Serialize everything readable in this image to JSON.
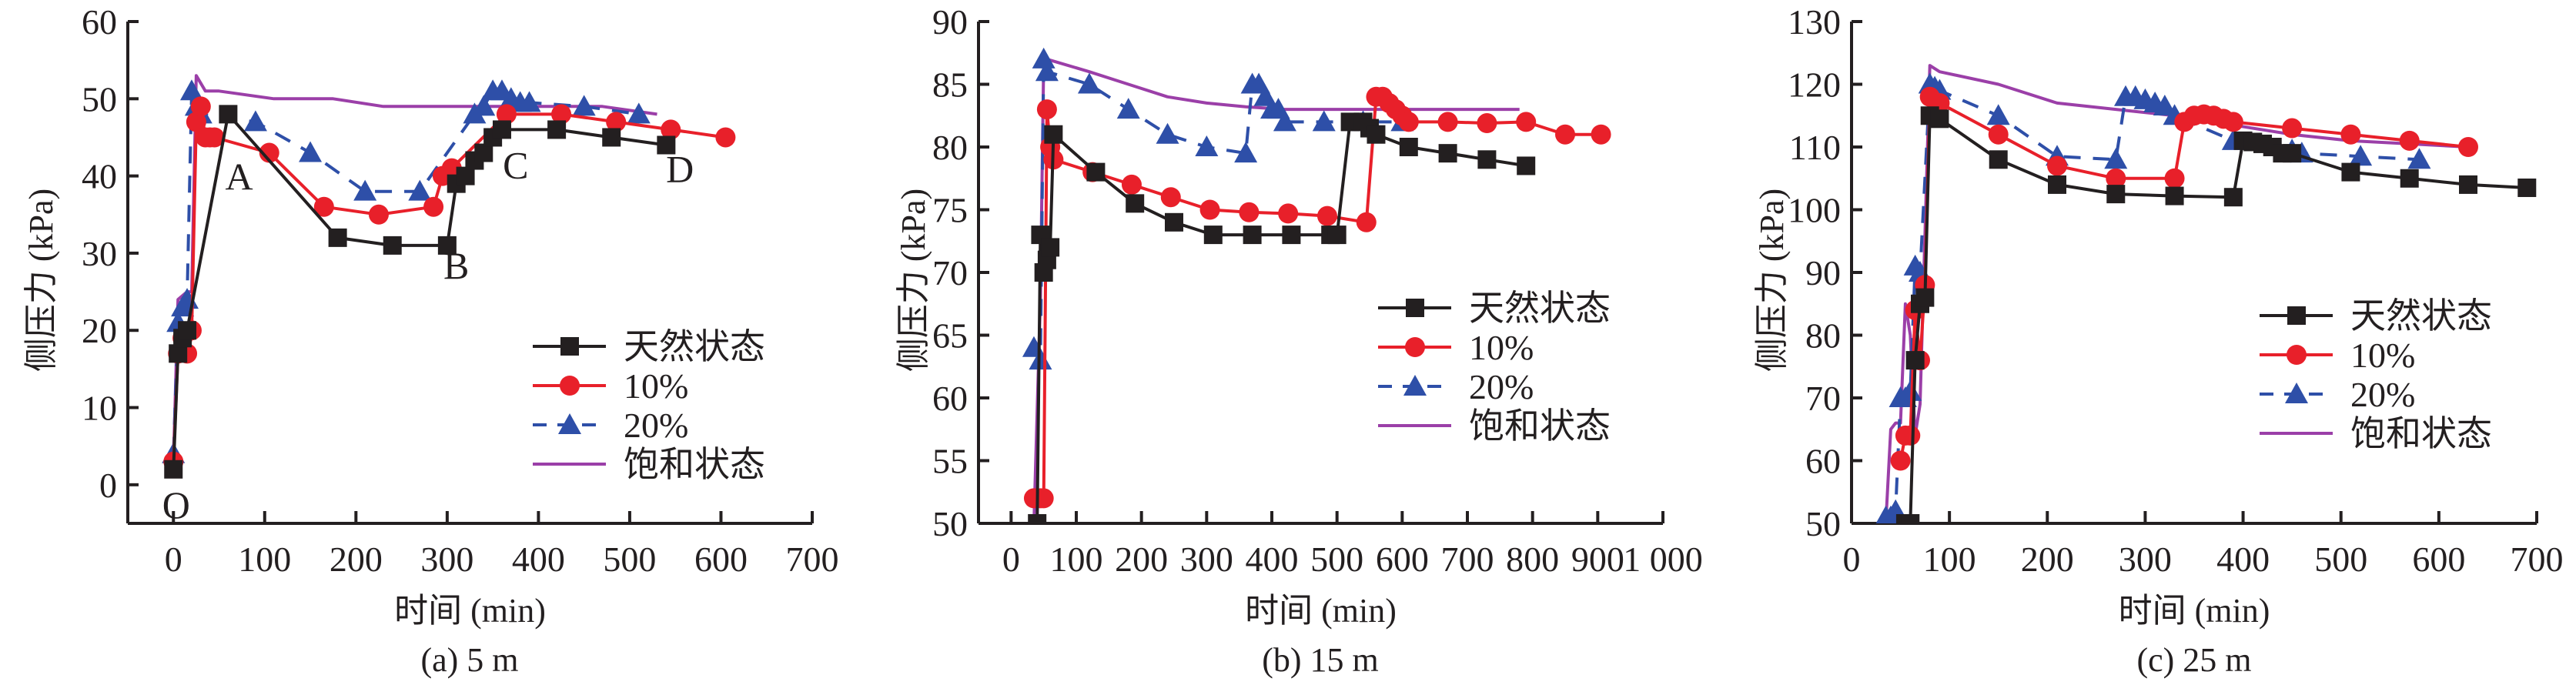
{
  "colors": {
    "natural": "#231f20",
    "p10": "#e8202a",
    "p20": "#2e4fa8",
    "saturated": "#9b3fa8"
  },
  "legend": [
    "天然状态",
    "10%",
    "20%",
    "饱和状态"
  ],
  "chart_data": [
    {
      "type": "line",
      "id": "a",
      "caption": "(a) 5 m",
      "xlabel": "时间 (min)",
      "ylabel": "侧压力 (kPa)",
      "xlim": [
        -50,
        700
      ],
      "ylim": [
        -5,
        60
      ],
      "xticks": [
        0,
        100,
        200,
        300,
        400,
        500,
        600,
        700
      ],
      "xtick_labels": [
        "0",
        "100",
        "200",
        "300",
        "400",
        "500",
        "600",
        "700"
      ],
      "yticks": [
        0,
        10,
        20,
        30,
        40,
        50,
        60
      ],
      "ytick_labels": [
        "0",
        "10",
        "20",
        "30",
        "40",
        "50",
        "60"
      ],
      "legend_position": "lower-right",
      "annotations": [
        {
          "text": "O",
          "x": 3,
          "y": -2.5
        },
        {
          "text": "A",
          "x": 72,
          "y": 40
        },
        {
          "text": "B",
          "x": 310,
          "y": 28.5
        },
        {
          "text": "C",
          "x": 375,
          "y": 41.5
        },
        {
          "text": "D",
          "x": 555,
          "y": 41
        }
      ],
      "series": [
        {
          "name": "天然状态",
          "x": [
            0,
            5,
            10,
            15,
            60,
            180,
            240,
            300,
            310,
            320,
            330,
            340,
            350,
            360,
            420,
            480,
            540
          ],
          "y": [
            2,
            17,
            19,
            20,
            48,
            32,
            31,
            31,
            39,
            40,
            42,
            43,
            45,
            46,
            46,
            45,
            44
          ]
        },
        {
          "name": "10%",
          "x": [
            0,
            5,
            10,
            15,
            20,
            25,
            30,
            35,
            40,
            45,
            105,
            165,
            225,
            285,
            295,
            305,
            365,
            425,
            485,
            545,
            605
          ],
          "y": [
            3,
            17,
            19,
            17,
            20,
            47,
            49,
            45,
            45,
            45,
            43,
            36,
            35,
            36,
            40,
            41,
            48,
            48,
            47,
            46,
            45
          ]
        },
        {
          "name": "20%",
          "x": [
            0,
            5,
            10,
            15,
            20,
            25,
            30,
            90,
            150,
            210,
            270,
            330,
            340,
            350,
            360,
            370,
            380,
            390,
            450,
            510
          ],
          "y": [
            4,
            21,
            23,
            24,
            51,
            49,
            48,
            47,
            43,
            38,
            38,
            48,
            49,
            51,
            51,
            50,
            49.5,
            49.5,
            49,
            48
          ]
        },
        {
          "name": "饱和状态",
          "x": [
            0,
            5,
            15,
            20,
            25,
            35,
            50,
            110,
            175,
            230,
            470,
            500,
            530
          ],
          "y": [
            3,
            24,
            25,
            25,
            53,
            51,
            51,
            50,
            50,
            49,
            49,
            48.5,
            48
          ]
        }
      ]
    },
    {
      "type": "line",
      "id": "b",
      "caption": "(b) 15 m",
      "xlabel": "时间 (min)",
      "ylabel": "侧压力 (kPa)",
      "xlim": [
        -50,
        1000
      ],
      "ylim": [
        50,
        90
      ],
      "xticks": [
        0,
        100,
        200,
        300,
        400,
        500,
        600,
        700,
        800,
        900,
        1000
      ],
      "xtick_labels": [
        "0",
        "100",
        "200",
        "300",
        "400",
        "500",
        "600",
        "700",
        "800",
        "900",
        "1 000"
      ],
      "yticks": [
        50,
        55,
        60,
        65,
        70,
        75,
        80,
        85,
        90
      ],
      "ytick_labels": [
        "50",
        "55",
        "60",
        "65",
        "70",
        "75",
        "80",
        "85",
        "90"
      ],
      "legend_position": "lower-right",
      "series": [
        {
          "name": "天然状态",
          "x": [
            40,
            45,
            50,
            55,
            60,
            65,
            130,
            190,
            250,
            310,
            370,
            430,
            490,
            500,
            520,
            540,
            550,
            560,
            610,
            670,
            730,
            790
          ],
          "y": [
            50,
            73,
            70,
            71,
            72,
            81,
            78,
            75.5,
            74,
            73,
            73,
            73,
            73,
            73,
            82,
            82,
            81.5,
            81,
            80,
            79.5,
            79,
            78.5
          ]
        },
        {
          "name": "10%",
          "x": [
            35,
            45,
            50,
            55,
            60,
            65,
            125,
            185,
            245,
            305,
            365,
            425,
            485,
            545,
            560,
            570,
            580,
            590,
            600,
            610,
            670,
            730,
            790,
            850,
            905
          ],
          "y": [
            52,
            52,
            52,
            83,
            80,
            79,
            78,
            77,
            76,
            75,
            74.8,
            74.7,
            74.5,
            74,
            84,
            84,
            83.5,
            83,
            82.5,
            82,
            82,
            81.9,
            82,
            81,
            81
          ]
        },
        {
          "name": "20%",
          "x": [
            35,
            45,
            50,
            55,
            120,
            180,
            240,
            300,
            360,
            370,
            380,
            390,
            400,
            410,
            420,
            480,
            540,
            600
          ],
          "y": [
            64,
            63,
            87,
            86,
            85,
            83,
            81,
            80,
            79.5,
            85,
            85,
            84,
            83,
            83,
            82,
            82,
            82,
            82
          ]
        },
        {
          "name": "饱和状态",
          "x": [
            35,
            45,
            50,
            55,
            120,
            180,
            240,
            300,
            360,
            420,
            480,
            540,
            600,
            660,
            720,
            780
          ],
          "y": [
            50,
            68,
            87,
            87,
            86,
            85,
            84,
            83.5,
            83.2,
            83,
            83,
            83,
            83,
            83,
            83,
            83
          ]
        }
      ]
    },
    {
      "type": "line",
      "id": "c",
      "caption": "(c) 25 m",
      "xlabel": "时间 (min)",
      "ylabel": "侧压力 (kPa)",
      "xlim": [
        0,
        700
      ],
      "ylim": [
        50,
        130
      ],
      "xticks": [
        0,
        100,
        200,
        300,
        400,
        500,
        600,
        700
      ],
      "xtick_labels": [
        "0",
        "100",
        "200",
        "300",
        "400",
        "500",
        "600",
        "700"
      ],
      "yticks": [
        50,
        60,
        70,
        80,
        90,
        100,
        110,
        120,
        130
      ],
      "ytick_labels": [
        "50",
        "60",
        "70",
        "80",
        "90",
        "100",
        "110",
        "120",
        "130"
      ],
      "legend_position": "lower-right",
      "series": [
        {
          "name": "天然状态",
          "x": [
            55,
            60,
            65,
            70,
            75,
            80,
            90,
            150,
            210,
            270,
            330,
            390,
            400,
            410,
            420,
            430,
            440,
            450,
            510,
            570,
            630,
            690
          ],
          "y": [
            50,
            50,
            76,
            85,
            86,
            115,
            114.5,
            108,
            104,
            102.5,
            102.2,
            102,
            111,
            110.8,
            110.5,
            110,
            109,
            109,
            106,
            105,
            104,
            103.5
          ]
        },
        {
          "name": "10%",
          "x": [
            50,
            55,
            60,
            65,
            70,
            75,
            80,
            90,
            150,
            210,
            270,
            330,
            340,
            350,
            360,
            370,
            380,
            390,
            450,
            510,
            570,
            630
          ],
          "y": [
            60,
            64,
            64,
            84,
            76,
            88,
            118,
            117,
            112,
            107,
            105,
            105,
            114,
            115,
            115.2,
            115,
            114.5,
            114,
            113,
            112,
            111,
            110
          ]
        },
        {
          "name": "20%",
          "x": [
            35,
            40,
            45,
            50,
            55,
            60,
            65,
            70,
            80,
            85,
            90,
            150,
            210,
            270,
            280,
            290,
            300,
            310,
            320,
            330,
            390,
            450,
            460,
            520,
            580
          ],
          "y": [
            51,
            51,
            52,
            70,
            70,
            71,
            91,
            90,
            120,
            119.5,
            119,
            115,
            108.5,
            108,
            118,
            118,
            117.5,
            117,
            116.5,
            115,
            111,
            109.5,
            109,
            108.5,
            108
          ]
        },
        {
          "name": "饱和状态",
          "x": [
            35,
            40,
            45,
            50,
            55,
            60,
            65,
            70,
            80,
            90,
            150,
            210,
            270,
            330,
            390,
            450,
            510,
            570,
            630
          ],
          "y": [
            50,
            65,
            66,
            66,
            85,
            80,
            64,
            69,
            123,
            122,
            120,
            117,
            116,
            115,
            113.5,
            112,
            111,
            110.5,
            110
          ]
        }
      ]
    }
  ]
}
